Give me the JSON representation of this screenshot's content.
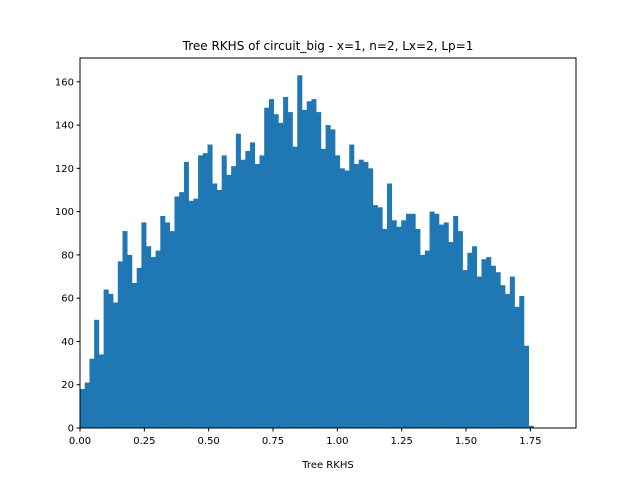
{
  "chart_data": {
    "type": "bar",
    "title": "Tree RKHS of circuit_big - x=1, n=2, Lx=2, Lp=1",
    "xlabel": "Tree RKHS",
    "ylabel": "",
    "xlim": [
      0.0,
      1.9273
    ],
    "ylim": [
      0,
      171
    ],
    "bin_start": 0.0,
    "bin_width": 0.018354,
    "xticks": [
      0.0,
      0.25,
      0.5,
      0.75,
      1.0,
      1.25,
      1.5,
      1.75
    ],
    "xtick_labels": [
      "0.00",
      "0.25",
      "0.50",
      "0.75",
      "1.00",
      "1.25",
      "1.50",
      "1.75"
    ],
    "yticks": [
      0,
      20,
      40,
      60,
      80,
      100,
      120,
      140,
      160
    ],
    "ytick_labels": [
      "0",
      "20",
      "40",
      "60",
      "80",
      "100",
      "120",
      "140",
      "160"
    ],
    "bar_color": "#1f77b4",
    "grid": false,
    "values": [
      18,
      21,
      32,
      50,
      34,
      64,
      62,
      58,
      77,
      91,
      80,
      67,
      74,
      95,
      84,
      79,
      82,
      98,
      95,
      91,
      107,
      109,
      123,
      105,
      106,
      126,
      127,
      131,
      113,
      110,
      126,
      117,
      121,
      136,
      124,
      128,
      132,
      122,
      126,
      148,
      152,
      145,
      141,
      153,
      146,
      130,
      163,
      147,
      151,
      152,
      146,
      129,
      140,
      138,
      126,
      120,
      119,
      131,
      122,
      124,
      123,
      120,
      103,
      102,
      92,
      113,
      96,
      93,
      96,
      99,
      99,
      92,
      80,
      82,
      100,
      99,
      94,
      95,
      86,
      98,
      91,
      73,
      81,
      84,
      70,
      78,
      79,
      75,
      72,
      66,
      62,
      70,
      56,
      61,
      38,
      1
    ]
  }
}
